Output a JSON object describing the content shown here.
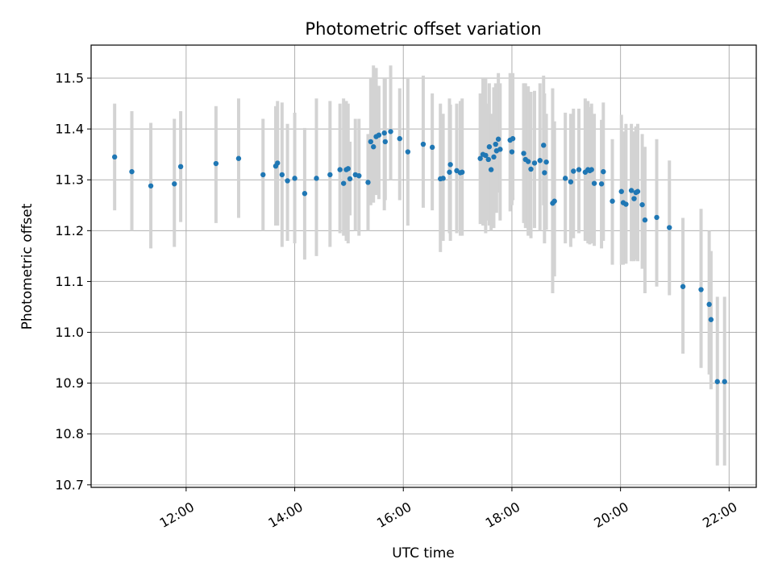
{
  "chart_data": {
    "type": "scatter",
    "title": "Photometric offset variation",
    "xlabel": "UTC time",
    "ylabel": "Photometric offset",
    "xlim": [
      "10:15",
      "22:30"
    ],
    "ylim": [
      10.695,
      11.565
    ],
    "grid": true,
    "legend": "none",
    "x_ticks": [
      "12:00",
      "14:00",
      "16:00",
      "18:00",
      "20:00",
      "22:00"
    ],
    "y_ticks": [
      "10.7",
      "10.8",
      "10.9",
      "11.0",
      "11.1",
      "11.2",
      "11.3",
      "11.4",
      "11.5"
    ],
    "colors": {
      "points": "#1f77b4",
      "error_bars": "#d3d3d3",
      "grid": "#b0b0b0"
    },
    "series": [
      {
        "x": [
          "10:41",
          "11:00",
          "11:21",
          "11:47",
          "11:54",
          "12:33",
          "12:58",
          "13:25",
          "13:39",
          "13:41",
          "13:46",
          "13:52",
          "14:00",
          "14:11",
          "14:24",
          "14:39",
          "14:50",
          "14:54",
          "14:57",
          "14:59",
          "15:01",
          "15:07",
          "15:11",
          "15:21",
          "15:24",
          "15:27",
          "15:30",
          "15:33",
          "15:39",
          "15:40",
          "15:46",
          "15:56",
          "16:05",
          "16:22",
          "16:32",
          "16:41",
          "16:44",
          "16:51",
          "16:52",
          "16:59",
          "17:03",
          "17:05",
          "17:25",
          "17:28",
          "17:31",
          "17:34",
          "17:35",
          "17:37",
          "17:40",
          "17:42",
          "17:43",
          "17:45",
          "17:47",
          "17:58",
          "18:00",
          "18:01",
          "18:13",
          "18:15",
          "18:18",
          "18:21",
          "18:25",
          "18:31",
          "18:35",
          "18:36",
          "18:38",
          "18:45",
          "18:47",
          "18:59",
          "19:05",
          "19:08",
          "19:14",
          "19:21",
          "19:24",
          "19:26",
          "19:28",
          "19:31",
          "19:39",
          "19:41",
          "19:51",
          "20:01",
          "20:03",
          "20:06",
          "20:12",
          "20:15",
          "20:17",
          "20:19",
          "20:24",
          "20:27",
          "20:40",
          "20:54",
          "21:09",
          "21:29",
          "21:38",
          "21:40",
          "21:47",
          "21:55"
        ],
        "y": [
          11.345,
          11.316,
          11.288,
          11.292,
          11.326,
          11.332,
          11.342,
          11.31,
          11.327,
          11.333,
          11.31,
          11.298,
          11.303,
          11.273,
          11.303,
          11.31,
          11.32,
          11.293,
          11.32,
          11.322,
          11.302,
          11.31,
          11.308,
          11.295,
          11.375,
          11.365,
          11.385,
          11.388,
          11.392,
          11.375,
          11.395,
          11.381,
          11.355,
          11.37,
          11.364,
          11.302,
          11.303,
          11.315,
          11.33,
          11.318,
          11.314,
          11.315,
          11.342,
          11.35,
          11.348,
          11.34,
          11.365,
          11.32,
          11.345,
          11.37,
          11.357,
          11.38,
          11.36,
          11.378,
          11.355,
          11.381,
          11.352,
          11.34,
          11.336,
          11.321,
          11.333,
          11.338,
          11.368,
          11.314,
          11.335,
          11.254,
          11.258,
          11.303,
          11.296,
          11.317,
          11.32,
          11.315,
          11.32,
          11.318,
          11.32,
          11.293,
          11.292,
          11.316,
          11.258,
          11.277,
          11.255,
          11.252,
          11.279,
          11.263,
          11.275,
          11.277,
          11.251,
          11.221,
          11.226,
          11.206,
          11.09,
          11.084,
          11.055,
          11.025,
          10.903,
          10.903
        ],
        "yerr_low": [
          11.24,
          11.2,
          11.165,
          11.168,
          11.217,
          11.215,
          11.225,
          11.2,
          11.21,
          11.21,
          11.168,
          11.18,
          11.175,
          11.143,
          11.15,
          11.168,
          11.195,
          11.19,
          11.18,
          11.175,
          11.23,
          11.2,
          11.19,
          11.2,
          11.25,
          11.255,
          11.27,
          11.262,
          11.24,
          11.26,
          11.3,
          11.26,
          11.21,
          11.245,
          11.24,
          11.158,
          11.18,
          11.195,
          11.18,
          11.195,
          11.19,
          11.19,
          11.213,
          11.21,
          11.195,
          11.22,
          11.21,
          11.2,
          11.205,
          11.255,
          11.235,
          11.275,
          11.22,
          11.238,
          11.25,
          11.26,
          11.215,
          11.205,
          11.19,
          11.185,
          11.205,
          11.2,
          11.25,
          11.175,
          11.202,
          11.077,
          11.11,
          11.175,
          11.168,
          11.185,
          11.195,
          11.18,
          11.175,
          11.173,
          11.175,
          11.17,
          11.165,
          11.18,
          11.133,
          11.133,
          11.133,
          11.135,
          11.14,
          11.14,
          11.143,
          11.14,
          11.125,
          11.077,
          11.09,
          11.073,
          10.958,
          10.93,
          10.917,
          10.888,
          10.738,
          10.738
        ],
        "yerr_high": [
          11.45,
          11.435,
          11.412,
          11.42,
          11.435,
          11.445,
          11.46,
          11.42,
          11.445,
          11.455,
          11.452,
          11.41,
          11.432,
          11.402,
          11.46,
          11.455,
          11.45,
          11.46,
          11.455,
          11.45,
          11.375,
          11.42,
          11.42,
          11.39,
          11.5,
          11.525,
          11.52,
          11.485,
          11.5,
          11.5,
          11.525,
          11.48,
          11.5,
          11.505,
          11.47,
          11.45,
          11.43,
          11.46,
          11.448,
          11.45,
          11.455,
          11.46,
          11.47,
          11.5,
          11.5,
          11.45,
          11.49,
          11.43,
          11.482,
          11.49,
          11.48,
          11.51,
          11.49,
          11.51,
          11.45,
          11.51,
          11.49,
          11.49,
          11.484,
          11.473,
          11.475,
          11.49,
          11.505,
          11.47,
          11.43,
          11.48,
          11.415,
          11.432,
          11.43,
          11.44,
          11.44,
          11.46,
          11.455,
          11.443,
          11.45,
          11.43,
          11.418,
          11.452,
          11.38,
          11.428,
          11.395,
          11.41,
          11.41,
          11.395,
          11.405,
          11.41,
          11.39,
          11.365,
          11.38,
          11.338,
          11.225,
          11.243,
          11.2,
          11.16,
          11.07,
          11.07
        ]
      }
    ]
  }
}
